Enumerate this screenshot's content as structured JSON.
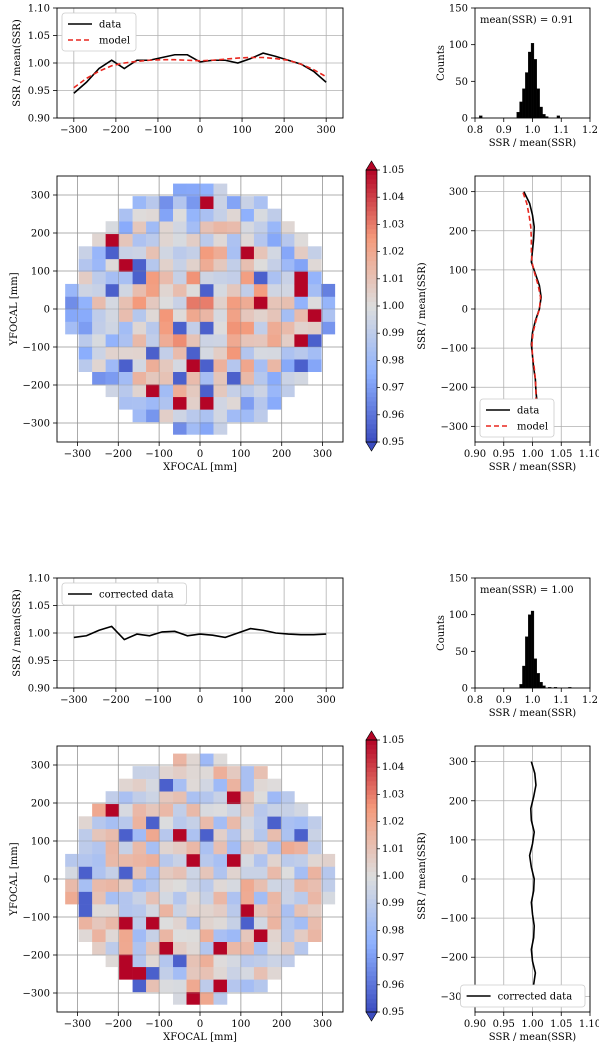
{
  "chart_data": [
    {
      "id": "top-profile",
      "type": "line",
      "xlabel": "",
      "ylabel": "SSR / mean(SSR)",
      "xlim": [
        -340,
        340
      ],
      "ylim": [
        0.9,
        1.1
      ],
      "xticks": [
        -300,
        -200,
        -100,
        0,
        100,
        200,
        300
      ],
      "yticks": [
        0.9,
        0.95,
        1.0,
        1.05,
        1.1
      ],
      "grid": true,
      "legend_position": "top-left",
      "x": [
        -300,
        -270,
        -240,
        -210,
        -180,
        -150,
        -120,
        -90,
        -60,
        -30,
        0,
        30,
        60,
        90,
        120,
        150,
        180,
        210,
        240,
        270,
        300
      ],
      "series": [
        {
          "name": "data",
          "color": "#000000",
          "style": "solid",
          "values": [
            0.945,
            0.965,
            0.99,
            1.005,
            0.99,
            1.005,
            1.005,
            1.01,
            1.015,
            1.015,
            1.002,
            1.005,
            1.005,
            1.0,
            1.008,
            1.018,
            1.012,
            1.005,
            0.998,
            0.985,
            0.965
          ]
        },
        {
          "name": "model",
          "color": "#e8271f",
          "style": "dashed",
          "values": [
            0.955,
            0.972,
            0.985,
            0.995,
            1.0,
            1.003,
            1.005,
            1.006,
            1.006,
            1.005,
            1.004,
            1.005,
            1.007,
            1.009,
            1.01,
            1.01,
            1.008,
            1.005,
            0.998,
            0.988,
            0.975
          ]
        }
      ]
    },
    {
      "id": "top-hist",
      "type": "bar",
      "annotation": "mean(SSR) = 0.91",
      "xlabel": "SSR / mean(SSR)",
      "ylabel": "Counts",
      "xlim": [
        0.8,
        1.2
      ],
      "ylim": [
        0,
        150
      ],
      "xticks": [
        0.8,
        0.9,
        1.0,
        1.1,
        1.2
      ],
      "yticks": [
        0,
        50,
        100,
        150
      ],
      "bin_width": 0.01,
      "bins": [
        {
          "x": 0.82,
          "count": 3
        },
        {
          "x": 0.95,
          "count": 8
        },
        {
          "x": 0.96,
          "count": 22
        },
        {
          "x": 0.97,
          "count": 40
        },
        {
          "x": 0.98,
          "count": 62
        },
        {
          "x": 0.99,
          "count": 90
        },
        {
          "x": 1.0,
          "count": 102
        },
        {
          "x": 1.01,
          "count": 80
        },
        {
          "x": 1.02,
          "count": 40
        },
        {
          "x": 1.03,
          "count": 15
        },
        {
          "x": 1.04,
          "count": 5
        },
        {
          "x": 1.05,
          "count": 2
        },
        {
          "x": 1.09,
          "count": 3
        }
      ]
    },
    {
      "id": "top-map",
      "type": "heatmap",
      "xlabel": "XFOCAL [mm]",
      "ylabel": "YFOCAL [mm]",
      "xlim": [
        -350,
        350
      ],
      "ylim": [
        -350,
        350
      ],
      "xticks": [
        -300,
        -200,
        -100,
        0,
        100,
        200,
        300
      ],
      "yticks": [
        -300,
        -200,
        -100,
        0,
        100,
        200,
        300
      ],
      "grid": true,
      "grid_size": 20,
      "x_extent": [
        -330,
        330
      ],
      "y_extent": [
        -330,
        330
      ],
      "colorbar": {
        "label": "SSR / mean(SSR)",
        "min": 0.95,
        "max": 1.05,
        "ticks": [
          "0.95",
          "0.96",
          "0.97",
          "0.98",
          "0.99",
          "1.00",
          "1.01",
          "1.02",
          "1.03",
          "1.04",
          "1.05"
        ]
      },
      "seed": 7,
      "gradient": 1.0
    },
    {
      "id": "top-yprofile",
      "type": "line",
      "xlabel": "SSR / mean(SSR)",
      "ylabel": "",
      "xlim": [
        0.9,
        1.1
      ],
      "ylim": [
        -340,
        340
      ],
      "xticks": [
        0.9,
        0.95,
        1.0,
        1.05,
        1.1
      ],
      "yticks": [
        -300,
        -200,
        -100,
        0,
        100,
        200,
        300
      ],
      "grid": true,
      "legend_position": "bottom-left",
      "y": [
        -300,
        -270,
        -240,
        -210,
        -180,
        -150,
        -120,
        -90,
        -60,
        -30,
        0,
        30,
        60,
        90,
        120,
        150,
        180,
        210,
        240,
        270,
        300
      ],
      "series": [
        {
          "name": "data",
          "color": "#000000",
          "style": "solid",
          "values": [
            1.008,
            1.01,
            1.008,
            1.006,
            1.005,
            1.002,
            1.0,
            0.998,
            1.0,
            1.005,
            1.012,
            1.015,
            1.012,
            1.005,
            0.998,
            1.0,
            1.002,
            1.003,
            1.0,
            0.995,
            0.985
          ]
        },
        {
          "name": "model",
          "color": "#e8271f",
          "style": "dashed",
          "values": [
            1.003,
            1.005,
            1.006,
            1.006,
            1.005,
            1.003,
            1.0,
            0.999,
            1.001,
            1.006,
            1.012,
            1.014,
            1.01,
            1.004,
            0.999,
            0.998,
            0.998,
            0.997,
            0.994,
            0.99,
            0.983
          ]
        }
      ]
    },
    {
      "id": "bottom-profile",
      "type": "line",
      "xlabel": "",
      "ylabel": "SSR / mean(SSR)",
      "xlim": [
        -340,
        340
      ],
      "ylim": [
        0.9,
        1.1
      ],
      "xticks": [
        -300,
        -200,
        -100,
        0,
        100,
        200,
        300
      ],
      "yticks": [
        0.9,
        0.95,
        1.0,
        1.05,
        1.1
      ],
      "grid": true,
      "legend_position": "top-left",
      "x": [
        -300,
        -270,
        -240,
        -210,
        -180,
        -150,
        -120,
        -90,
        -60,
        -30,
        0,
        30,
        60,
        90,
        120,
        150,
        180,
        210,
        240,
        270,
        300
      ],
      "series": [
        {
          "name": "corrected data",
          "color": "#000000",
          "style": "solid",
          "values": [
            0.992,
            0.995,
            1.005,
            1.012,
            0.988,
            0.998,
            0.995,
            1.002,
            1.003,
            0.995,
            0.998,
            0.996,
            0.992,
            1.0,
            1.008,
            1.005,
            1.0,
            0.998,
            0.997,
            0.997,
            0.998
          ]
        }
      ]
    },
    {
      "id": "bottom-hist",
      "type": "bar",
      "annotation": "mean(SSR) = 1.00",
      "xlabel": "SSR / mean(SSR)",
      "ylabel": "Counts",
      "xlim": [
        0.8,
        1.2
      ],
      "ylim": [
        0,
        150
      ],
      "xticks": [
        0.8,
        0.9,
        1.0,
        1.1,
        1.2
      ],
      "yticks": [
        0,
        50,
        100,
        150
      ],
      "bin_width": 0.01,
      "bins": [
        {
          "x": 0.96,
          "count": 5
        },
        {
          "x": 0.97,
          "count": 30
        },
        {
          "x": 0.98,
          "count": 70
        },
        {
          "x": 0.99,
          "count": 100
        },
        {
          "x": 1.0,
          "count": 105
        },
        {
          "x": 1.01,
          "count": 40
        },
        {
          "x": 1.02,
          "count": 20
        },
        {
          "x": 1.03,
          "count": 8
        },
        {
          "x": 1.04,
          "count": 3
        },
        {
          "x": 1.06,
          "count": 1
        },
        {
          "x": 1.08,
          "count": 1
        },
        {
          "x": 1.13,
          "count": 1
        }
      ]
    },
    {
      "id": "bottom-map",
      "type": "heatmap",
      "xlabel": "XFOCAL [mm]",
      "ylabel": "YFOCAL [mm]",
      "xlim": [
        -350,
        350
      ],
      "ylim": [
        -350,
        350
      ],
      "xticks": [
        -300,
        -200,
        -100,
        0,
        100,
        200,
        300
      ],
      "yticks": [
        -300,
        -200,
        -100,
        0,
        100,
        200,
        300
      ],
      "grid": true,
      "grid_size": 20,
      "x_extent": [
        -330,
        330
      ],
      "y_extent": [
        -330,
        330
      ],
      "colorbar": {
        "label": "SSR / mean(SSR)",
        "min": 0.95,
        "max": 1.05,
        "ticks": [
          "0.95",
          "0.96",
          "0.97",
          "0.98",
          "0.99",
          "1.00",
          "1.01",
          "1.02",
          "1.03",
          "1.04",
          "1.05"
        ]
      },
      "seed": 19,
      "gradient": 0.0
    },
    {
      "id": "bottom-yprofile",
      "type": "line",
      "xlabel": "SSR / mean(SSR)",
      "ylabel": "",
      "xlim": [
        0.9,
        1.1
      ],
      "ylim": [
        -340,
        340
      ],
      "xticks": [
        0.9,
        0.95,
        1.0,
        1.05,
        1.1
      ],
      "yticks": [
        -300,
        -200,
        -100,
        0,
        100,
        200,
        300
      ],
      "grid": true,
      "legend_position": "bottom-right",
      "y": [
        -300,
        -270,
        -240,
        -210,
        -180,
        -150,
        -120,
        -90,
        -60,
        -30,
        0,
        30,
        60,
        90,
        120,
        150,
        180,
        210,
        240,
        270,
        300
      ],
      "series": [
        {
          "name": "corrected data",
          "color": "#000000",
          "style": "solid",
          "values": [
            0.995,
            1.002,
            1.005,
            1.0,
            0.998,
            1.002,
            1.003,
            1.0,
            0.998,
            1.002,
            1.003,
            0.998,
            0.995,
            1.0,
            1.003,
            0.998,
            0.997,
            1.002,
            1.006,
            1.004,
            0.998
          ]
        }
      ]
    }
  ]
}
